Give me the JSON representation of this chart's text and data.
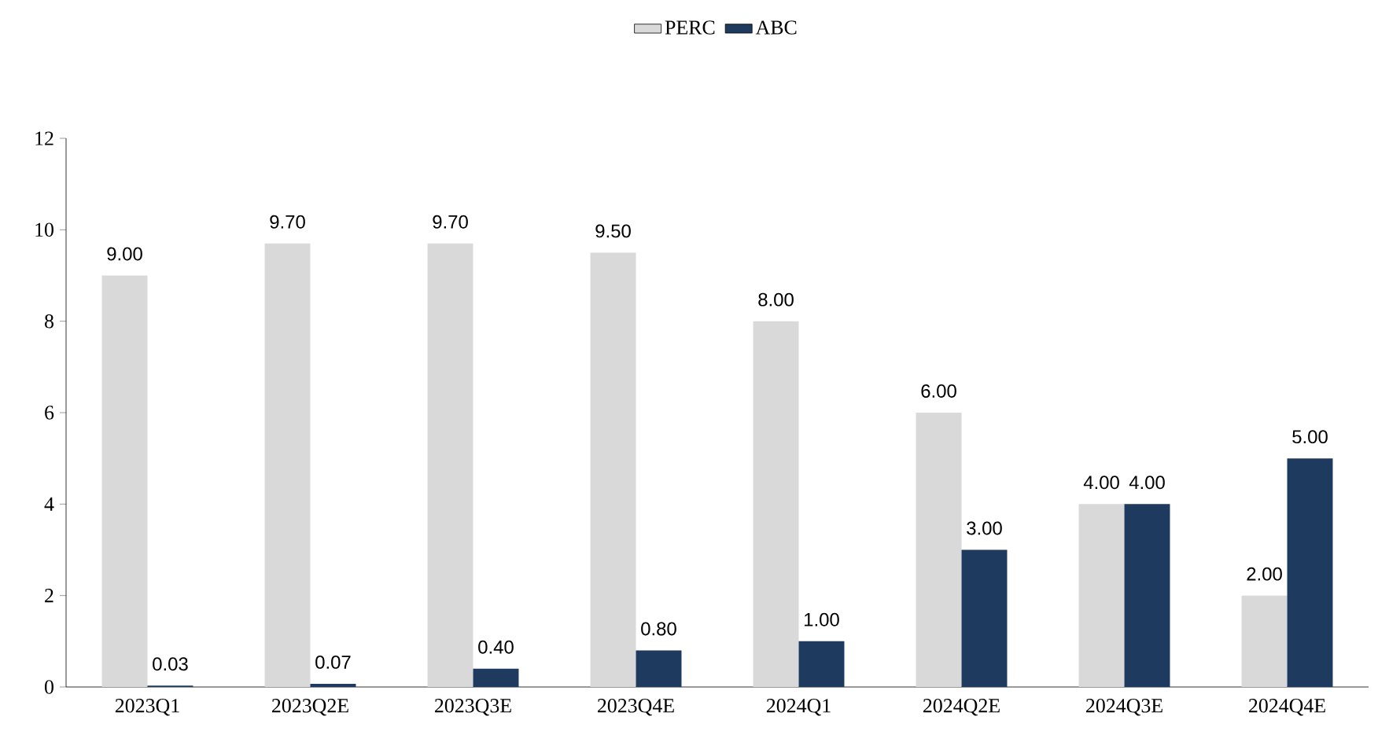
{
  "chart_data": {
    "type": "bar",
    "categories": [
      "2023Q1",
      "2023Q2E",
      "2023Q3E",
      "2023Q4E",
      "2024Q1",
      "2024Q2E",
      "2024Q3E",
      "2024Q4E"
    ],
    "series": [
      {
        "name": "PERC",
        "color": "#d9d9d9",
        "values": [
          9.0,
          9.7,
          9.7,
          9.5,
          8.0,
          6.0,
          4.0,
          2.0
        ],
        "value_labels": [
          "9.00",
          "9.70",
          "9.70",
          "9.50",
          "8.00",
          "6.00",
          "4.00",
          "2.00"
        ]
      },
      {
        "name": "ABC",
        "color": "#1f3a5f",
        "values": [
          0.03,
          0.07,
          0.4,
          0.8,
          1.0,
          3.0,
          4.0,
          5.0
        ],
        "value_labels": [
          "0.03",
          "0.07",
          "0.40",
          "0.80",
          "1.00",
          "3.00",
          "4.00",
          "5.00"
        ]
      }
    ],
    "ylim": [
      0,
      12
    ],
    "yticks": [
      0,
      2,
      4,
      6,
      8,
      10,
      12
    ],
    "legend": "top"
  }
}
